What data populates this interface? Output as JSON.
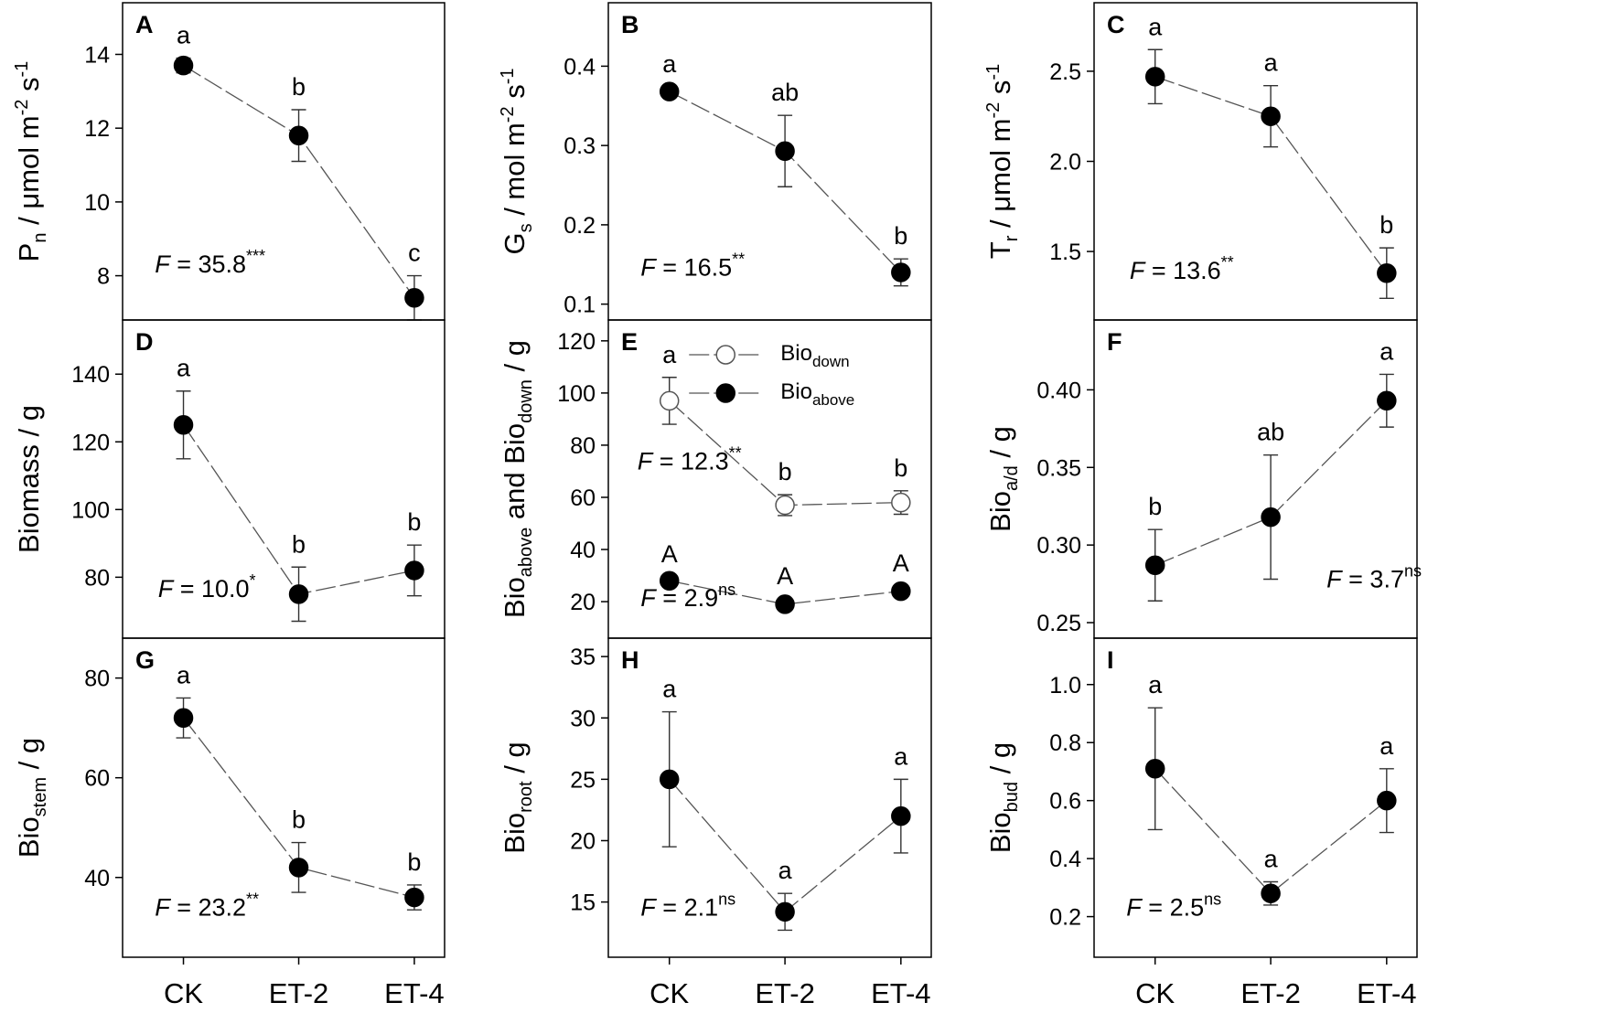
{
  "chart_data": [
    {
      "type": "line",
      "panel": "A",
      "categories": [
        "CK",
        "ET-2",
        "ET-4"
      ],
      "ylabel": {
        "main": "P",
        "sub": "n",
        "rest": " / μmol m",
        "exp1": "-2",
        "mid": " s",
        "exp2": "-1"
      },
      "ylim": [
        6.8,
        15.4
      ],
      "yticks": [
        8,
        10,
        12,
        14
      ],
      "series": [
        {
          "values": [
            13.7,
            11.8,
            7.4
          ],
          "err": [
            0.2,
            0.7,
            0.6
          ],
          "marker": "filled",
          "labels": [
            "a",
            "b",
            "c"
          ]
        }
      ],
      "fstat": {
        "label": "F",
        "text": " = 35.8",
        "sup": "***"
      }
    },
    {
      "type": "line",
      "panel": "B",
      "categories": [
        "CK",
        "ET-2",
        "ET-4"
      ],
      "ylabel": {
        "main": "G",
        "sub": "s",
        "rest": " / mol m",
        "exp1": "-2",
        "mid": " s",
        "exp2": "-1"
      },
      "ylim": [
        0.08,
        0.48
      ],
      "yticks": [
        0.1,
        0.2,
        0.3,
        0.4
      ],
      "series": [
        {
          "values": [
            0.368,
            0.293,
            0.14
          ],
          "err": [
            0.006,
            0.045,
            0.017
          ],
          "marker": "filled",
          "labels": [
            "a",
            "ab",
            "b"
          ]
        }
      ],
      "fstat": {
        "label": "F",
        "text": " = 16.5",
        "sup": "**"
      }
    },
    {
      "type": "line",
      "panel": "C",
      "categories": [
        "CK",
        "ET-2",
        "ET-4"
      ],
      "ylabel": {
        "main": "T",
        "sub": "r",
        "rest": " / μmol m",
        "exp1": "-2",
        "mid": " s",
        "exp2": "-1"
      },
      "ylim": [
        1.12,
        2.88
      ],
      "yticks": [
        1.5,
        2.0,
        2.5
      ],
      "series": [
        {
          "values": [
            2.47,
            2.25,
            1.38
          ],
          "err": [
            0.15,
            0.17,
            0.14
          ],
          "marker": "filled",
          "labels": [
            "a",
            "a",
            "b"
          ]
        }
      ],
      "fstat": {
        "label": "F",
        "text": " = 13.6",
        "sup": "**"
      }
    },
    {
      "type": "line",
      "panel": "D",
      "categories": [
        "CK",
        "ET-2",
        "ET-4"
      ],
      "ylabel": {
        "main": "Biomass / g"
      },
      "ylim": [
        62,
        156
      ],
      "yticks": [
        80,
        100,
        120,
        140
      ],
      "series": [
        {
          "values": [
            125,
            75,
            82
          ],
          "err": [
            10,
            8,
            7.5
          ],
          "marker": "filled",
          "labels": [
            "a",
            "b",
            "b"
          ]
        }
      ],
      "fstat": {
        "label": "F",
        "text": " = 10.0",
        "sup": "*"
      }
    },
    {
      "type": "line",
      "panel": "E",
      "categories": [
        "CK",
        "ET-2",
        "ET-4"
      ],
      "ylabel": {
        "main": "Bio",
        "sub": "above",
        "rest": " and Bio",
        "sub2": "down",
        "rest2": " / g"
      },
      "ylim": [
        6,
        128
      ],
      "yticks": [
        20,
        40,
        60,
        80,
        100,
        120
      ],
      "series": [
        {
          "name_main": "Bio",
          "name_sub": "down",
          "values": [
            97,
            57,
            58
          ],
          "err": [
            9,
            4,
            4.5
          ],
          "marker": "open",
          "labels": [
            "a",
            "b",
            "b"
          ]
        },
        {
          "name_main": "Bio",
          "name_sub": "above",
          "values": [
            28,
            19,
            24
          ],
          "err": [
            1.5,
            2,
            2
          ],
          "marker": "filled",
          "labels": [
            "A",
            "A",
            "A"
          ]
        }
      ],
      "fstats": [
        {
          "label": "F",
          "text": " = 12.3",
          "sup": "**"
        },
        {
          "label": "F",
          "text": " = 2.9",
          "sup": "ns"
        }
      ],
      "legend": "top-center"
    },
    {
      "type": "line",
      "panel": "F",
      "categories": [
        "CK",
        "ET-2",
        "ET-4"
      ],
      "ylabel": {
        "main": "Bio",
        "sub": "a/d",
        "rest": " / g"
      },
      "ylim": [
        0.24,
        0.445
      ],
      "yticks": [
        0.25,
        0.3,
        0.35,
        0.4
      ],
      "series": [
        {
          "values": [
            0.287,
            0.318,
            0.393
          ],
          "err": [
            0.023,
            0.04,
            0.017
          ],
          "marker": "filled",
          "labels": [
            "b",
            "ab",
            "a"
          ]
        }
      ],
      "fstat": {
        "label": "F",
        "text": " = 3.7",
        "sup": "ns"
      }
    },
    {
      "type": "line",
      "panel": "G",
      "categories": [
        "CK",
        "ET-2",
        "ET-4"
      ],
      "ylabel": {
        "main": "Bio",
        "sub": "stem",
        "rest": " / g"
      },
      "ylim": [
        24,
        88
      ],
      "yticks": [
        40,
        60,
        80
      ],
      "series": [
        {
          "values": [
            72,
            42,
            36
          ],
          "err": [
            4,
            5,
            2.5
          ],
          "marker": "filled",
          "labels": [
            "a",
            "b",
            "b"
          ]
        }
      ],
      "fstat": {
        "label": "F",
        "text": " = 23.2",
        "sup": "**"
      }
    },
    {
      "type": "line",
      "panel": "H",
      "categories": [
        "CK",
        "ET-2",
        "ET-4"
      ],
      "ylabel": {
        "main": "Bio",
        "sub": "root",
        "rest": " / g"
      },
      "ylim": [
        10.5,
        36.5
      ],
      "yticks": [
        15,
        20,
        25,
        30,
        35
      ],
      "series": [
        {
          "values": [
            25,
            14.2,
            22
          ],
          "err": [
            5.5,
            1.5,
            3
          ],
          "marker": "filled",
          "labels": [
            "a",
            "a",
            "a"
          ]
        }
      ],
      "fstat": {
        "label": "F",
        "text": " = 2.1",
        "sup": "ns"
      }
    },
    {
      "type": "line",
      "panel": "I",
      "categories": [
        "CK",
        "ET-2",
        "ET-4"
      ],
      "ylabel": {
        "main": "Bio",
        "sub": "bud",
        "rest": " / g"
      },
      "ylim": [
        0.06,
        1.16
      ],
      "yticks": [
        0.2,
        0.4,
        0.6,
        0.8,
        1.0
      ],
      "series": [
        {
          "values": [
            0.71,
            0.28,
            0.6
          ],
          "err": [
            0.21,
            0.04,
            0.11
          ],
          "marker": "filled",
          "labels": [
            "a",
            "a",
            "a"
          ]
        }
      ],
      "fstat": {
        "label": "F",
        "text": " = 2.5",
        "sup": "ns"
      }
    }
  ]
}
